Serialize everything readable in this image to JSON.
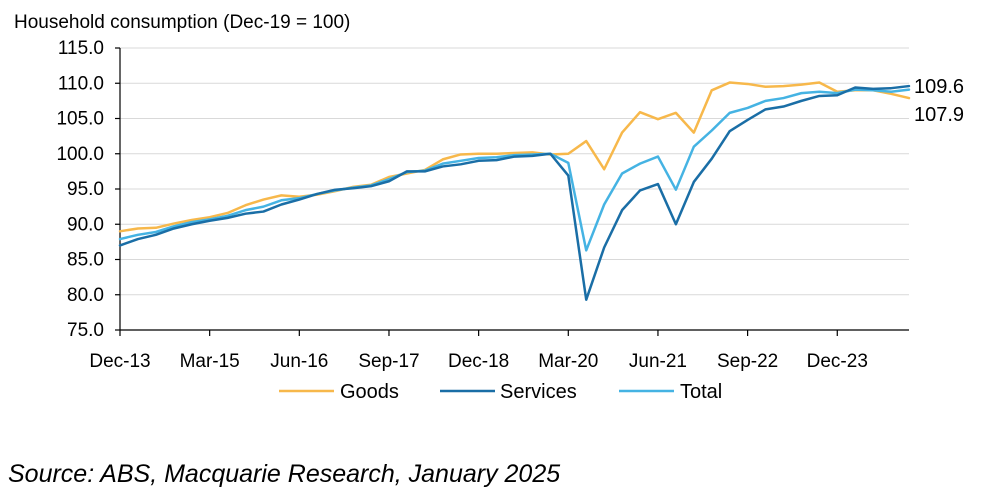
{
  "chart_data": {
    "type": "line",
    "title": "Household consumption (Dec-19 = 100)",
    "ylim": [
      75,
      115
    ],
    "yticks": [
      "75.0",
      "80.0",
      "85.0",
      "90.0",
      "95.0",
      "100.0",
      "105.0",
      "110.0",
      "115.0"
    ],
    "xtick_labels": [
      "Dec-13",
      "Mar-15",
      "Jun-16",
      "Sep-17",
      "Dec-18",
      "Mar-20",
      "Jun-21",
      "Sep-22",
      "Dec-23"
    ],
    "end_labels": [
      "109.6",
      "107.9"
    ],
    "series": [
      {
        "name": "Goods",
        "color": "#f7b84b",
        "values": [
          89.0,
          89.4,
          89.5,
          90.1,
          90.6,
          91.0,
          91.6,
          92.7,
          93.5,
          94.1,
          93.9,
          94.2,
          94.7,
          95.3,
          95.6,
          96.7,
          97.2,
          97.7,
          99.2,
          99.9,
          100.0,
          100.0,
          100.1,
          100.2,
          99.9,
          100.0,
          101.8,
          97.8,
          103.0,
          105.9,
          104.9,
          105.8,
          103.0,
          109.0,
          110.1,
          109.9,
          109.5,
          109.6,
          109.8,
          110.1,
          108.8,
          109.0,
          109.0,
          108.5,
          107.9
        ]
      },
      {
        "name": "Services",
        "color": "#1a6ea6",
        "values": [
          87.0,
          87.9,
          88.5,
          89.4,
          90.0,
          90.5,
          90.9,
          91.5,
          91.8,
          92.8,
          93.5,
          94.3,
          94.9,
          95.1,
          95.4,
          96.1,
          97.5,
          97.5,
          98.2,
          98.5,
          99.0,
          99.1,
          99.6,
          99.7,
          100.0,
          96.9,
          79.3,
          86.7,
          92.0,
          94.8,
          95.7,
          90.0,
          96.0,
          99.3,
          103.2,
          104.8,
          106.3,
          106.7,
          107.5,
          108.2,
          108.3,
          109.4,
          109.2,
          109.3,
          109.6
        ]
      },
      {
        "name": "Total",
        "color": "#45b3e3",
        "values": [
          87.9,
          88.5,
          88.9,
          89.7,
          90.3,
          90.7,
          91.2,
          92.0,
          92.5,
          93.4,
          93.7,
          94.3,
          94.8,
          95.2,
          95.5,
          96.4,
          97.4,
          97.6,
          98.6,
          99.0,
          99.4,
          99.5,
          99.8,
          99.9,
          100.0,
          98.7,
          86.3,
          92.8,
          97.2,
          98.6,
          99.6,
          94.9,
          101.0,
          103.3,
          105.8,
          106.5,
          107.5,
          107.9,
          108.6,
          108.8,
          108.6,
          109.1,
          109.0,
          108.8,
          109.1
        ]
      }
    ]
  },
  "source_text": "Source: ABS, Macquarie Research, January 2025"
}
